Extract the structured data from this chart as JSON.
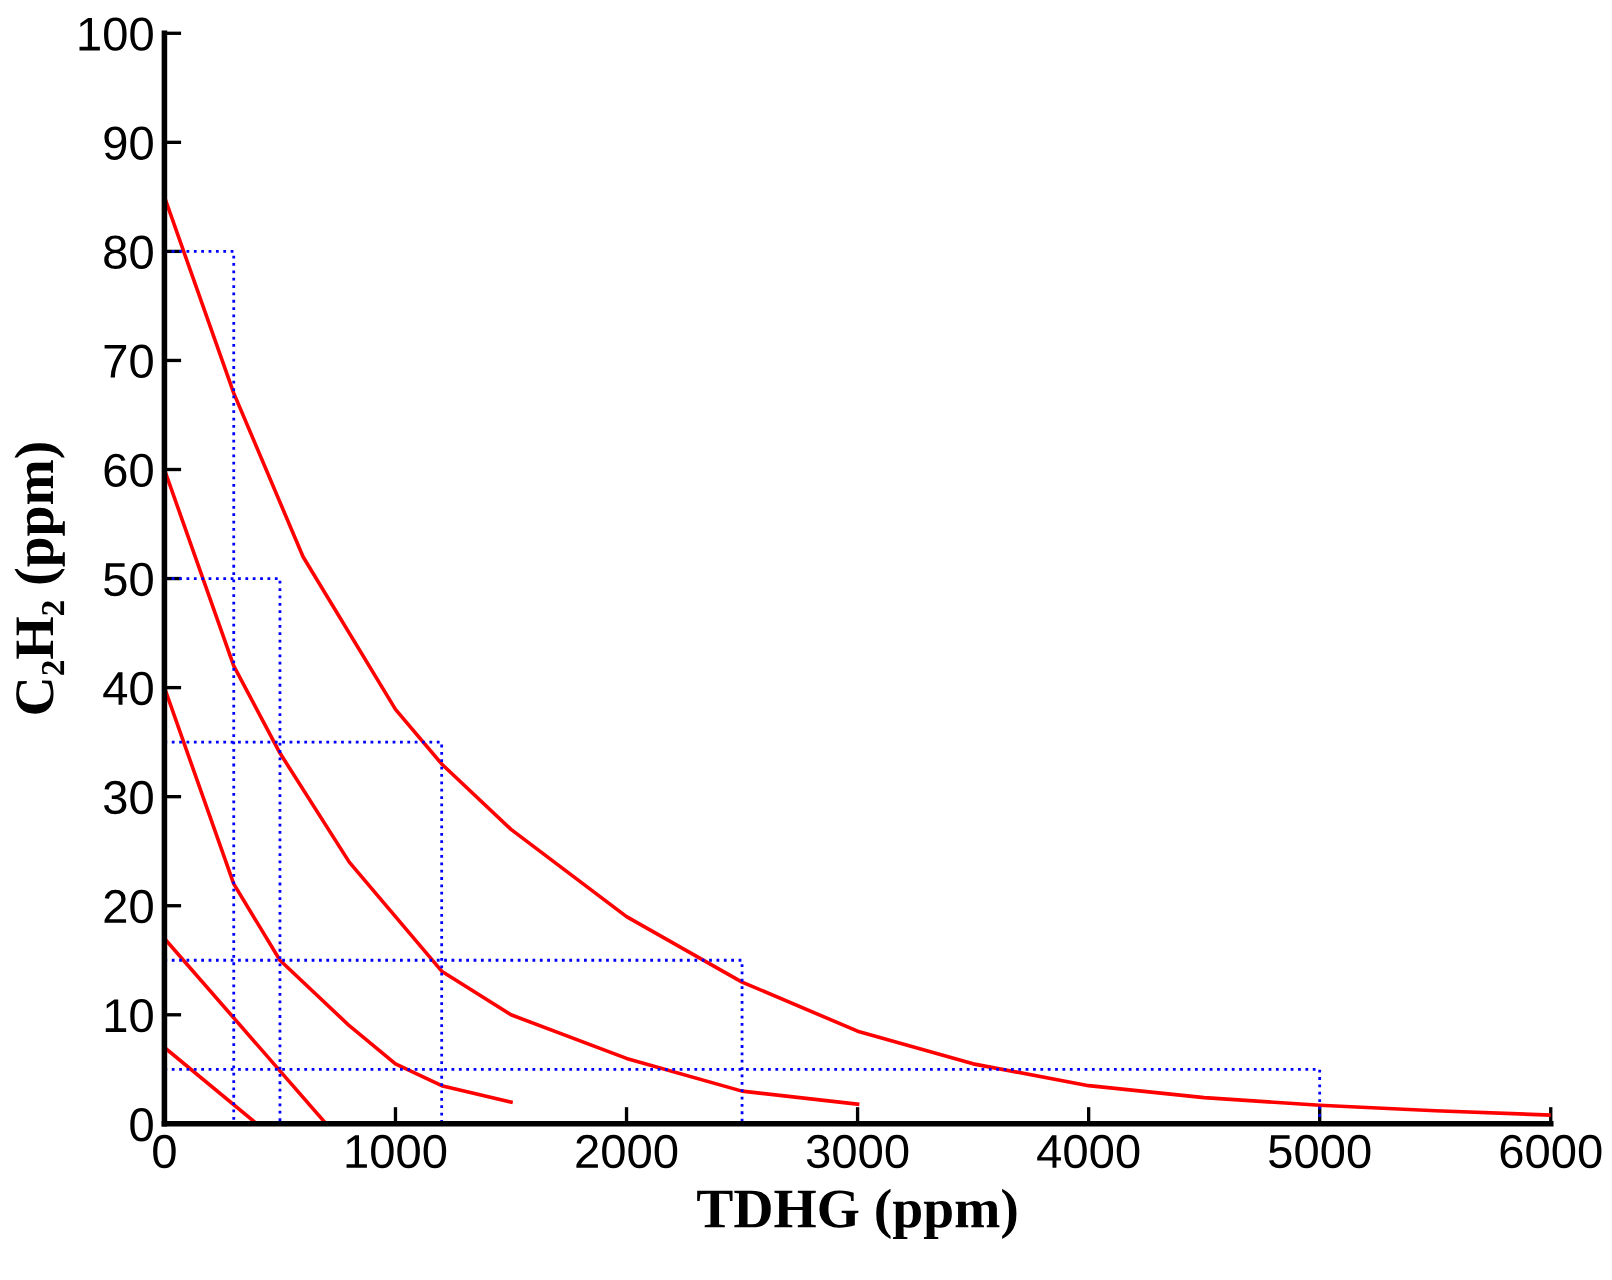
{
  "chart_data": {
    "type": "line",
    "xlabel": "TDHG (ppm)",
    "ylabel": "C₂H₂ (ppm)",
    "xlim": [
      0,
      6000
    ],
    "ylim": [
      0,
      100
    ],
    "xticks": [
      0,
      1000,
      2000,
      3000,
      4000,
      5000,
      6000
    ],
    "yticks": [
      0,
      10,
      20,
      30,
      40,
      50,
      60,
      70,
      80,
      90,
      100
    ],
    "grid": false,
    "legend": false,
    "marker": "none",
    "series": [
      {
        "color": "#ff0000",
        "line_style": "solid",
        "x": [
          0,
          300,
          600,
          1000,
          1200,
          1500,
          2000,
          2500,
          3000,
          3500,
          4000,
          4500,
          5000,
          5500,
          6000
        ],
        "values": [
          85,
          67,
          52,
          38,
          33,
          27,
          19,
          13,
          8.5,
          5.5,
          3.5,
          2.4,
          1.7,
          1.2,
          0.8
        ]
      },
      {
        "color": "#ff0000",
        "line_style": "solid",
        "x": [
          0,
          300,
          500,
          800,
          1200,
          1500,
          2000,
          2500,
          3000
        ],
        "values": [
          60,
          42,
          34,
          24,
          14,
          10,
          6,
          3,
          1.8
        ]
      },
      {
        "color": "#ff0000",
        "line_style": "solid",
        "x": [
          0,
          300,
          500,
          800,
          1000,
          1200,
          1500
        ],
        "values": [
          40,
          22,
          15,
          9,
          5.5,
          3.5,
          2
        ]
      },
      {
        "color": "#ff0000",
        "line_style": "solid",
        "x": [
          0,
          700
        ],
        "values": [
          17,
          0
        ]
      },
      {
        "color": "#ff0000",
        "line_style": "solid",
        "x": [
          0,
          400
        ],
        "values": [
          7,
          0
        ]
      },
      {
        "color": "#0000ff",
        "line_style": "dotted",
        "x": [
          0,
          300,
          300
        ],
        "values": [
          80,
          80,
          0
        ]
      },
      {
        "color": "#0000ff",
        "line_style": "dotted",
        "x": [
          0,
          500,
          500
        ],
        "values": [
          50,
          50,
          0
        ]
      },
      {
        "color": "#0000ff",
        "line_style": "dotted",
        "x": [
          0,
          1200,
          1200
        ],
        "values": [
          35,
          35,
          0
        ]
      },
      {
        "color": "#0000ff",
        "line_style": "dotted",
        "x": [
          0,
          2500,
          2500
        ],
        "values": [
          15,
          15,
          0
        ]
      },
      {
        "color": "#0000ff",
        "line_style": "dotted",
        "x": [
          0,
          5000,
          5000
        ],
        "values": [
          5,
          5,
          0
        ]
      }
    ]
  }
}
